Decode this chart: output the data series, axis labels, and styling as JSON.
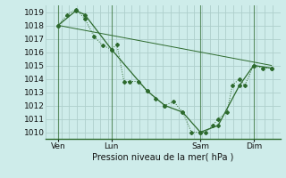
{
  "xlabel": "Pression niveau de la mer( hPa )",
  "background_color": "#ceecea",
  "grid_color": "#aecfcc",
  "line_color": "#2d6a2d",
  "ylim": [
    1009.5,
    1019.5
  ],
  "xlim": [
    -0.2,
    13.0
  ],
  "xtick_labels": [
    "Ven",
    "Lun",
    "Sam",
    "Dim"
  ],
  "xtick_positions": [
    0.5,
    3.5,
    8.5,
    11.5
  ],
  "vline_positions": [
    0.5,
    3.5,
    8.5,
    11.5
  ],
  "series1": [
    [
      0.5,
      1018.0
    ],
    [
      1.0,
      1018.8
    ],
    [
      1.5,
      1019.2
    ],
    [
      2.0,
      1018.5
    ],
    [
      2.5,
      1017.2
    ],
    [
      3.0,
      1016.5
    ],
    [
      3.5,
      1016.2
    ],
    [
      3.8,
      1016.6
    ],
    [
      4.2,
      1013.8
    ],
    [
      4.5,
      1013.8
    ],
    [
      5.0,
      1013.8
    ],
    [
      5.5,
      1013.1
    ],
    [
      6.0,
      1012.5
    ],
    [
      6.5,
      1012.0
    ],
    [
      7.0,
      1012.3
    ],
    [
      7.5,
      1011.5
    ],
    [
      8.0,
      1010.0
    ],
    [
      8.5,
      1010.0
    ],
    [
      8.8,
      1010.0
    ],
    [
      9.2,
      1010.5
    ],
    [
      9.5,
      1011.0
    ],
    [
      10.0,
      1011.5
    ],
    [
      10.3,
      1013.5
    ],
    [
      10.7,
      1014.0
    ],
    [
      11.0,
      1013.5
    ],
    [
      11.5,
      1015.0
    ],
    [
      12.0,
      1014.8
    ],
    [
      12.5,
      1014.8
    ]
  ],
  "series2": [
    [
      0.5,
      1018.0
    ],
    [
      1.5,
      1019.1
    ],
    [
      2.0,
      1018.8
    ],
    [
      3.5,
      1016.2
    ],
    [
      5.5,
      1013.1
    ],
    [
      6.5,
      1012.0
    ],
    [
      7.5,
      1011.5
    ],
    [
      8.5,
      1010.0
    ],
    [
      9.5,
      1010.5
    ],
    [
      10.7,
      1013.5
    ],
    [
      11.5,
      1015.0
    ],
    [
      12.5,
      1014.8
    ]
  ],
  "series3_line": [
    [
      0.5,
      1018.0
    ],
    [
      12.5,
      1015.0
    ]
  ]
}
